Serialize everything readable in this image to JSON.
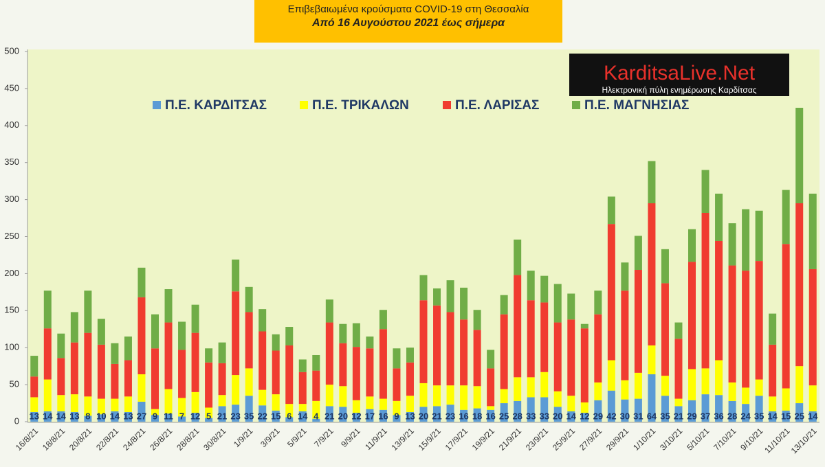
{
  "chart_data": {
    "type": "stacked_bar",
    "title": "Επιβεβαιωμένα κρούσματα COVID-19 στη Θεσσαλία",
    "subtitle": "Από 16 Αυγούστου 2021 έως σήμερα",
    "categories": [
      "16/8/21",
      null,
      "18/8/21",
      null,
      "20/8/21",
      null,
      "22/8/21",
      null,
      "24/8/21",
      null,
      "26/8/21",
      null,
      "28/8/21",
      null,
      "30/8/21",
      null,
      "1/9/21",
      null,
      "3/9/21",
      null,
      "5/9/21",
      null,
      "7/9/21",
      null,
      "9/9/21",
      null,
      "11/9/21",
      null,
      "13/9/21",
      null,
      "15/9/21",
      null,
      "17/9/21",
      null,
      "19/9/21",
      null,
      "21/9/21",
      null,
      "23/9/21",
      null,
      "25/9/21",
      null,
      "27/9/21",
      null,
      "29/9/21",
      null,
      "1/10/21",
      null,
      "3/10/21",
      null,
      "5/10/21",
      null,
      "7/10/21",
      null,
      "9/10/21",
      null,
      "11/10/21",
      null,
      "13/10/21"
    ],
    "series": [
      {
        "name": "Π.Ε. ΚΑΡΔΙΤΣΑΣ",
        "color": "#5b9bd5",
        "labels": true,
        "values": [
          13,
          14,
          14,
          13,
          8,
          10,
          14,
          13,
          27,
          9,
          11,
          7,
          12,
          5,
          21,
          23,
          35,
          22,
          15,
          6,
          14,
          4,
          21,
          20,
          12,
          17,
          16,
          9,
          13,
          20,
          21,
          23,
          16,
          18,
          16,
          25,
          28,
          33,
          33,
          20,
          14,
          12,
          29,
          42,
          30,
          31,
          64,
          35,
          21,
          29,
          37,
          36,
          28,
          24,
          35,
          14,
          15,
          25,
          14
        ]
      },
      {
        "name": "Π.Ε. ΤΡΙΚΑΛΩΝ",
        "color": "#ffff00",
        "values": [
          20,
          43,
          22,
          24,
          26,
          21,
          17,
          21,
          37,
          8,
          33,
          25,
          28,
          14,
          15,
          40,
          37,
          21,
          22,
          18,
          10,
          24,
          29,
          28,
          17,
          17,
          15,
          19,
          22,
          32,
          28,
          26,
          33,
          30,
          5,
          19,
          32,
          27,
          34,
          21,
          21,
          14,
          24,
          41,
          26,
          35,
          39,
          27,
          10,
          42,
          35,
          47,
          25,
          22,
          22,
          20,
          30,
          50,
          35
        ]
      },
      {
        "name": "Π.Ε. ΛΑΡΙΣΑΣ",
        "color": "#f03c30",
        "values": [
          28,
          69,
          50,
          70,
          86,
          73,
          47,
          49,
          104,
          82,
          90,
          65,
          80,
          61,
          43,
          113,
          76,
          79,
          59,
          79,
          43,
          41,
          84,
          58,
          72,
          65,
          94,
          44,
          45,
          112,
          108,
          99,
          89,
          76,
          51,
          101,
          138,
          104,
          94,
          93,
          103,
          100,
          92,
          184,
          121,
          139,
          192,
          125,
          81,
          145,
          210,
          161,
          158,
          158,
          160,
          70,
          195,
          220,
          157
        ]
      },
      {
        "name": "Π.Ε. ΜΑΓΝΗΣΙΑΣ",
        "color": "#70ad47",
        "values": [
          28,
          51,
          33,
          41,
          57,
          35,
          28,
          32,
          40,
          46,
          45,
          38,
          38,
          19,
          28,
          43,
          34,
          30,
          22,
          25,
          17,
          21,
          31,
          26,
          32,
          16,
          26,
          27,
          20,
          34,
          23,
          43,
          43,
          27,
          25,
          26,
          48,
          40,
          36,
          52,
          35,
          6,
          32,
          37,
          38,
          46,
          57,
          46,
          22,
          44,
          58,
          64,
          57,
          83,
          68,
          42,
          73,
          129,
          102
        ]
      }
    ],
    "ylim": [
      0,
      500
    ],
    "yticks": [
      0,
      50,
      100,
      150,
      200,
      250,
      300,
      350,
      400,
      450,
      500
    ],
    "grid": false
  },
  "logo": {
    "name": "KarditsaLive.Net",
    "tagline": "Ηλεκτρονική πύλη ενημέρωσης Καρδίτσας"
  }
}
